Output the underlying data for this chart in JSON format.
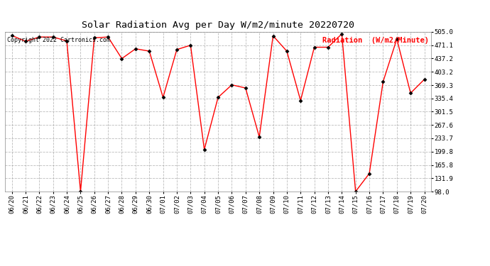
{
  "title": "Solar Radiation Avg per Day W/m2/minute 20220720",
  "copyright_text": "Copyright 2022 Cartronics.com",
  "legend_label": "Radiation  (W/m2/Minute)",
  "dates": [
    "06/20",
    "06/21",
    "06/22",
    "06/23",
    "06/24",
    "06/25",
    "06/26",
    "06/27",
    "06/28",
    "06/29",
    "06/30",
    "07/01",
    "07/02",
    "07/03",
    "07/04",
    "07/05",
    "07/06",
    "07/07",
    "07/08",
    "07/09",
    "07/10",
    "07/11",
    "07/12",
    "07/13",
    "07/14",
    "07/15",
    "07/16",
    "07/17",
    "07/18",
    "07/19",
    "07/20"
  ],
  "values": [
    496,
    481,
    492,
    492,
    482,
    98,
    490,
    492,
    437,
    462,
    456,
    338,
    460,
    471,
    205,
    338,
    370,
    362,
    237,
    495,
    456,
    330,
    466,
    466,
    500,
    98,
    144,
    378,
    487,
    349,
    384
  ],
  "line_color": "red",
  "marker_color": "black",
  "bg_color": "#ffffff",
  "grid_color": "#aaaaaa",
  "ylim": [
    98.0,
    505.0
  ],
  "yticks": [
    505.0,
    471.1,
    437.2,
    403.2,
    369.3,
    335.4,
    301.5,
    267.6,
    233.7,
    199.8,
    165.8,
    131.9,
    98.0
  ],
  "title_fontsize": 9.5,
  "copyright_fontsize": 6,
  "legend_fontsize": 7.5,
  "tick_fontsize": 6.5
}
